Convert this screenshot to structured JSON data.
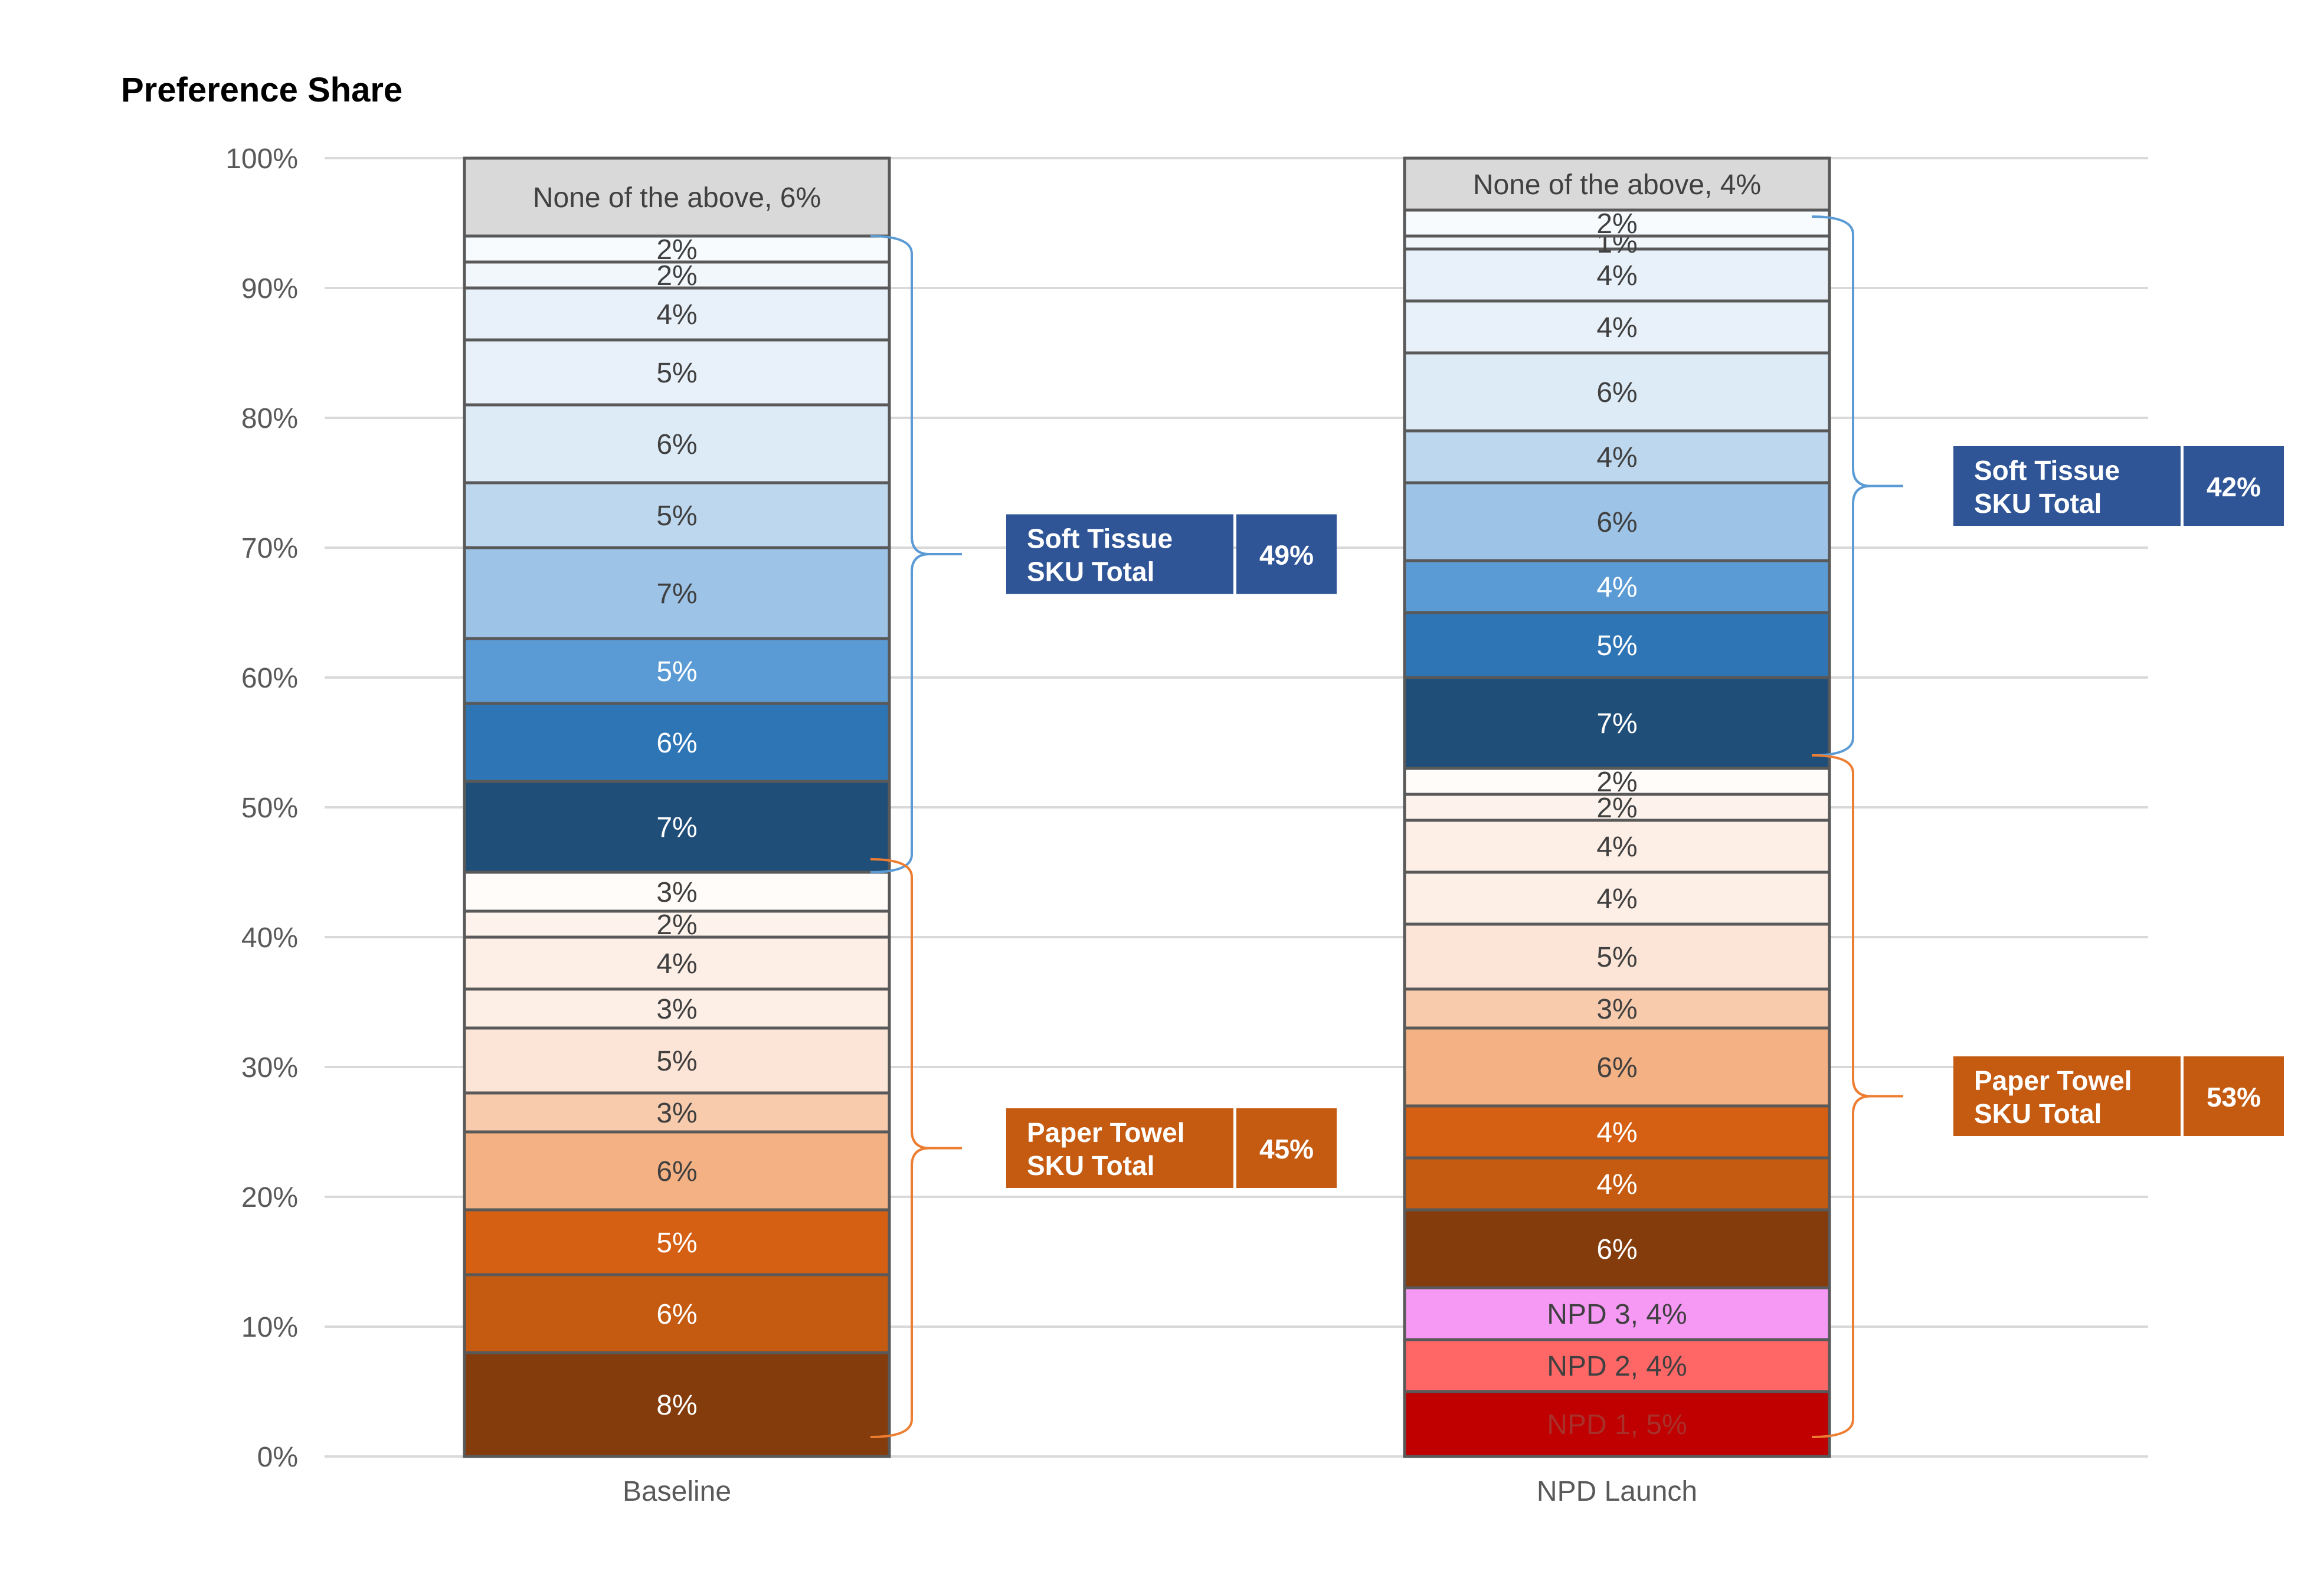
{
  "chart_data": {
    "type": "bar",
    "stacked": true,
    "title": "Preference Share",
    "categories": [
      "Baseline",
      "NPD Launch"
    ],
    "ylim": [
      0,
      100
    ],
    "yticks": [
      "0%",
      "10%",
      "20%",
      "30%",
      "40%",
      "50%",
      "60%",
      "70%",
      "80%",
      "90%",
      "100%"
    ],
    "grid": true,
    "columns": [
      {
        "name": "Baseline",
        "segments": [
          {
            "value": 8,
            "label": "8%",
            "color": "#843c0c",
            "text_color": "#ffffff"
          },
          {
            "value": 6,
            "label": "6%",
            "color": "#c55a11",
            "text_color": "#ffffff"
          },
          {
            "value": 5,
            "label": "5%",
            "color": "#d55f13",
            "text_color": "#ffffff"
          },
          {
            "value": 6,
            "label": "6%",
            "color": "#f4b183",
            "text_color": "#404040"
          },
          {
            "value": 3,
            "label": "3%",
            "color": "#f8cbad",
            "text_color": "#404040"
          },
          {
            "value": 5,
            "label": "5%",
            "color": "#fce4d6",
            "text_color": "#404040"
          },
          {
            "value": 3,
            "label": "3%",
            "color": "#fdeee6",
            "text_color": "#404040"
          },
          {
            "value": 4,
            "label": "4%",
            "color": "#fdeee6",
            "text_color": "#404040"
          },
          {
            "value": 2,
            "label": "2%",
            "color": "#fdf3ec",
            "text_color": "#404040"
          },
          {
            "value": 3,
            "label": "3%",
            "color": "#fffcfa",
            "text_color": "#404040"
          },
          {
            "value": 7,
            "label": "7%",
            "color": "#1f4e79",
            "text_color": "#ffffff"
          },
          {
            "value": 6,
            "label": "6%",
            "color": "#2e75b6",
            "text_color": "#ffffff"
          },
          {
            "value": 5,
            "label": "5%",
            "color": "#5b9bd5",
            "text_color": "#ffffff"
          },
          {
            "value": 7,
            "label": "7%",
            "color": "#9dc3e6",
            "text_color": "#404040"
          },
          {
            "value": 5,
            "label": "5%",
            "color": "#bdd7ee",
            "text_color": "#404040"
          },
          {
            "value": 6,
            "label": "6%",
            "color": "#ddebf7",
            "text_color": "#404040"
          },
          {
            "value": 5,
            "label": "5%",
            "color": "#e8f1fa",
            "text_color": "#404040"
          },
          {
            "value": 4,
            "label": "4%",
            "color": "#e8f1fa",
            "text_color": "#404040"
          },
          {
            "value": 2,
            "label": "2%",
            "color": "#f2f7fc",
            "text_color": "#404040"
          },
          {
            "value": 2,
            "label": "2%",
            "color": "#f7fbfe",
            "text_color": "#404040"
          },
          {
            "value": 6,
            "label": "None of the above, 6%",
            "color": "#d9d9d9",
            "text_color": "#404040"
          }
        ]
      },
      {
        "name": "NPD Launch",
        "segments": [
          {
            "value": 5,
            "label": "NPD 1, 5%",
            "color": "#c00000",
            "text_color": "#a8302a"
          },
          {
            "value": 4,
            "label": "NPD 2, 4%",
            "color": "#ff6666",
            "text_color": "#404040"
          },
          {
            "value": 4,
            "label": "NPD 3, 4%",
            "color": "#f599f5",
            "text_color": "#404040"
          },
          {
            "value": 6,
            "label": "6%",
            "color": "#843c0c",
            "text_color": "#ffffff"
          },
          {
            "value": 4,
            "label": "4%",
            "color": "#c55a11",
            "text_color": "#ffffff"
          },
          {
            "value": 4,
            "label": "4%",
            "color": "#d55f13",
            "text_color": "#ffffff"
          },
          {
            "value": 6,
            "label": "6%",
            "color": "#f4b183",
            "text_color": "#404040"
          },
          {
            "value": 3,
            "label": "3%",
            "color": "#f8cbad",
            "text_color": "#404040"
          },
          {
            "value": 5,
            "label": "5%",
            "color": "#fce4d6",
            "text_color": "#404040"
          },
          {
            "value": 4,
            "label": "4%",
            "color": "#fdeee6",
            "text_color": "#404040"
          },
          {
            "value": 4,
            "label": "4%",
            "color": "#fdeee6",
            "text_color": "#404040"
          },
          {
            "value": 2,
            "label": "2%",
            "color": "#fdf3ec",
            "text_color": "#404040"
          },
          {
            "value": 2,
            "label": "2%",
            "color": "#fffcfa",
            "text_color": "#404040"
          },
          {
            "value": 7,
            "label": "7%",
            "color": "#1f4e79",
            "text_color": "#ffffff"
          },
          {
            "value": 5,
            "label": "5%",
            "color": "#2e75b6",
            "text_color": "#ffffff"
          },
          {
            "value": 4,
            "label": "4%",
            "color": "#5b9bd5",
            "text_color": "#ffffff"
          },
          {
            "value": 6,
            "label": "6%",
            "color": "#9dc3e6",
            "text_color": "#404040"
          },
          {
            "value": 4,
            "label": "4%",
            "color": "#bdd7ee",
            "text_color": "#404040"
          },
          {
            "value": 6,
            "label": "6%",
            "color": "#ddebf7",
            "text_color": "#404040"
          },
          {
            "value": 4,
            "label": "4%",
            "color": "#e8f1fa",
            "text_color": "#404040"
          },
          {
            "value": 4,
            "label": "4%",
            "color": "#e8f1fa",
            "text_color": "#404040"
          },
          {
            "value": 1,
            "label": "1%",
            "color": "#f2f7fc",
            "text_color": "#404040"
          },
          {
            "value": 2,
            "label": "2%",
            "color": "#f7fbfe",
            "text_color": "#404040"
          },
          {
            "value": 4,
            "label": "None of the above, 4%",
            "color": "#d9d9d9",
            "text_color": "#404040"
          }
        ]
      }
    ],
    "annotations": [
      {
        "column": 0,
        "range": [
          45,
          94
        ],
        "label_line1": "Soft Tissue",
        "label_line2": "SKU Total",
        "value": "49%",
        "box_color": "#2f5597",
        "brace_color": "#5b9bd5"
      },
      {
        "column": 0,
        "range": [
          1.5,
          46
        ],
        "label_line1": "Paper Towel",
        "label_line2": "SKU Total",
        "value": "45%",
        "box_color": "#c55a11",
        "brace_color": "#ed7d31"
      },
      {
        "column": 1,
        "range": [
          54,
          95.5
        ],
        "label_line1": "Soft Tissue",
        "label_line2": "SKU Total",
        "value": "42%",
        "box_color": "#2f5597",
        "brace_color": "#5b9bd5"
      },
      {
        "column": 1,
        "range": [
          1.5,
          54
        ],
        "label_line1": "Paper Towel",
        "label_line2": "SKU Total",
        "value": "53%",
        "box_color": "#c55a11",
        "brace_color": "#ed7d31"
      }
    ]
  }
}
